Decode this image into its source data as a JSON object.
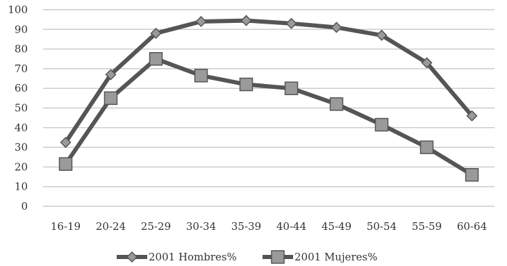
{
  "chart_data": {
    "type": "line",
    "categories": [
      "16-19",
      "20-24",
      "25-29",
      "30-34",
      "35-39",
      "40-44",
      "45-49",
      "50-54",
      "55-59",
      "60-64"
    ],
    "series": [
      {
        "name": "2001 Hombres%",
        "marker": "diamond",
        "values": [
          32.5,
          67,
          88,
          94,
          94.5,
          93,
          91,
          87,
          73,
          46
        ]
      },
      {
        "name": "2001 Mujeres%",
        "marker": "square",
        "values": [
          21.5,
          55,
          75,
          66.5,
          62,
          60,
          52,
          41.5,
          30,
          16
        ]
      }
    ],
    "title": "",
    "xlabel": "",
    "ylabel": "",
    "ylim": [
      0,
      100
    ],
    "yticks": [
      0,
      10,
      20,
      30,
      40,
      50,
      60,
      70,
      80,
      90,
      100
    ],
    "grid": true,
    "legend_position": "bottom",
    "colors": {
      "line": "#555555",
      "marker": "#9a9a9a",
      "grid": "#cccccc"
    }
  }
}
